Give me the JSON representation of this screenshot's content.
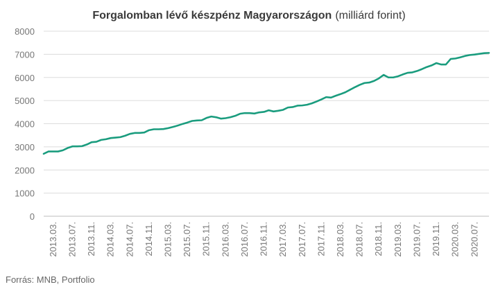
{
  "chart_data": {
    "type": "line",
    "title_bold": "Forgalomban lévő készpénz Magyarországon",
    "title_unit": "(milliárd forint)",
    "xlabel": "",
    "ylabel": "",
    "ylim": [
      0,
      8000
    ],
    "y_ticks": [
      0,
      1000,
      2000,
      3000,
      4000,
      5000,
      6000,
      7000,
      8000
    ],
    "x_tick_labels": [
      "2013.03.",
      "2013.07.",
      "2013.11.",
      "2014.03.",
      "2014.07.",
      "2014.11.",
      "2015.03.",
      "2015.07.",
      "2015.11.",
      "2016.03.",
      "2016.07.",
      "2016.11.",
      "2017.03.",
      "2017.07.",
      "2017.11.",
      "2018.03.",
      "2018.07.",
      "2018.11.",
      "2019.03.",
      "2019.07.",
      "2019.11.",
      "2020.03.",
      "2020.07."
    ],
    "grid": true,
    "legend": "none",
    "color": "#1a9c7e",
    "series": [
      {
        "x": [
          "2013.01.",
          "2013.02.",
          "2013.03.",
          "2013.04.",
          "2013.05.",
          "2013.06.",
          "2013.07.",
          "2013.08.",
          "2013.09.",
          "2013.10.",
          "2013.11.",
          "2013.12.",
          "2014.01.",
          "2014.02.",
          "2014.03.",
          "2014.04.",
          "2014.05.",
          "2014.06.",
          "2014.07.",
          "2014.08.",
          "2014.09.",
          "2014.10.",
          "2014.11.",
          "2014.12.",
          "2015.01.",
          "2015.02.",
          "2015.03.",
          "2015.04.",
          "2015.05.",
          "2015.06.",
          "2015.07.",
          "2015.08.",
          "2015.09.",
          "2015.10.",
          "2015.11.",
          "2015.12.",
          "2016.01.",
          "2016.02.",
          "2016.03.",
          "2016.04.",
          "2016.05.",
          "2016.06.",
          "2016.07.",
          "2016.08.",
          "2016.09.",
          "2016.10.",
          "2016.11.",
          "2016.12.",
          "2017.01.",
          "2017.02.",
          "2017.03.",
          "2017.04.",
          "2017.05.",
          "2017.06.",
          "2017.07.",
          "2017.08.",
          "2017.09.",
          "2017.10.",
          "2017.11.",
          "2017.12.",
          "2018.01.",
          "2018.02.",
          "2018.03.",
          "2018.04.",
          "2018.05.",
          "2018.06.",
          "2018.07.",
          "2018.08.",
          "2018.09.",
          "2018.10.",
          "2018.11.",
          "2018.12.",
          "2019.01.",
          "2019.02.",
          "2019.03.",
          "2019.04.",
          "2019.05.",
          "2019.06.",
          "2019.07.",
          "2019.08.",
          "2019.09.",
          "2019.10.",
          "2019.11.",
          "2019.12.",
          "2020.01.",
          "2020.02.",
          "2020.03.",
          "2020.04.",
          "2020.05.",
          "2020.06.",
          "2020.07.",
          "2020.08.",
          "2020.09.",
          "2020.10."
        ],
        "values": [
          2700,
          2800,
          2800,
          2800,
          2850,
          2950,
          3020,
          3020,
          3030,
          3100,
          3200,
          3220,
          3300,
          3330,
          3380,
          3400,
          3420,
          3480,
          3560,
          3600,
          3600,
          3620,
          3720,
          3760,
          3760,
          3770,
          3810,
          3860,
          3920,
          3990,
          4050,
          4120,
          4140,
          4150,
          4250,
          4310,
          4280,
          4220,
          4240,
          4280,
          4340,
          4430,
          4460,
          4460,
          4440,
          4490,
          4510,
          4580,
          4530,
          4560,
          4600,
          4700,
          4720,
          4780,
          4790,
          4820,
          4880,
          4960,
          5050,
          5150,
          5130,
          5210,
          5280,
          5360,
          5470,
          5580,
          5680,
          5760,
          5780,
          5850,
          5960,
          6110,
          6000,
          6000,
          6050,
          6130,
          6200,
          6220,
          6280,
          6360,
          6450,
          6520,
          6620,
          6560,
          6560,
          6800,
          6820,
          6870,
          6930,
          6970,
          6990,
          7020,
          7050,
          7060
        ]
      }
    ]
  },
  "source": "Forrás: MNB, Portfolio"
}
